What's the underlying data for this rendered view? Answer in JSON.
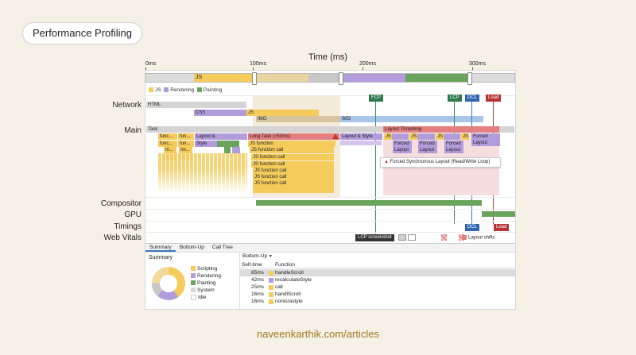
{
  "title_pill": "Performance Profiling",
  "axis": {
    "title": "Time (ms)",
    "ticks": [
      "0ms",
      "100ms",
      "200ms",
      "300ms"
    ]
  },
  "overview": {
    "js_label": "JS"
  },
  "legend": [
    "JS",
    "Rendering",
    "Painting"
  ],
  "tracks": [
    "Network",
    "Main",
    "Compositor",
    "GPU",
    "Timings",
    "Web Vitals"
  ],
  "network": {
    "html": "HTML",
    "css": "CSS",
    "js": "JS",
    "img1": "IMG",
    "img2": "IMG"
  },
  "markers": {
    "fcp": "FCP",
    "lcp": "LCP",
    "dcl": "DCL",
    "load": "Load"
  },
  "main": {
    "task": "Task",
    "long_task": "Long Task (>50ms)",
    "layout_thrashing": "Layout Thrashing",
    "layout_style_a": "Layout &",
    "style": "Style",
    "layout_style_b": "Layout & Style",
    "js_function": "JS function",
    "js_function_call": "JS function call",
    "fun1": "func...",
    "fun2": "fun...",
    "fun3": "fu...",
    "i1": "In...",
    "i2": "Im...",
    "dots": "...",
    "js": "JS",
    "forced": "Forced",
    "layout": "Layout",
    "tooltip": "Forced Synchronous Layout (Read/Write Loop)"
  },
  "web_vitals": {
    "lcp_screenshot": "LCP screenshot",
    "layout_shifts": "Layout shifts"
  },
  "bottom": {
    "tabs": [
      "Summary",
      "Bottom-Up",
      "Call Tree"
    ],
    "summary_title": "Summary",
    "summary_legend": [
      "Scripting",
      "Rendering",
      "Painting",
      "System",
      "Idle"
    ],
    "dropdown": "Bottom-Up",
    "col_self": "Self-time",
    "col_func": "Function",
    "rows": [
      {
        "time": "85ms",
        "fn": "handleScroll"
      },
      {
        "time": "42ms",
        "fn": "recalculateStyle"
      },
      {
        "time": "25ms",
        "fn": "call"
      },
      {
        "time": "16ms",
        "fn": "handlScroll"
      },
      {
        "time": "16ms",
        "fn": "nonisrastyle"
      }
    ]
  },
  "footer": "naveenkarthik.com/articles"
}
